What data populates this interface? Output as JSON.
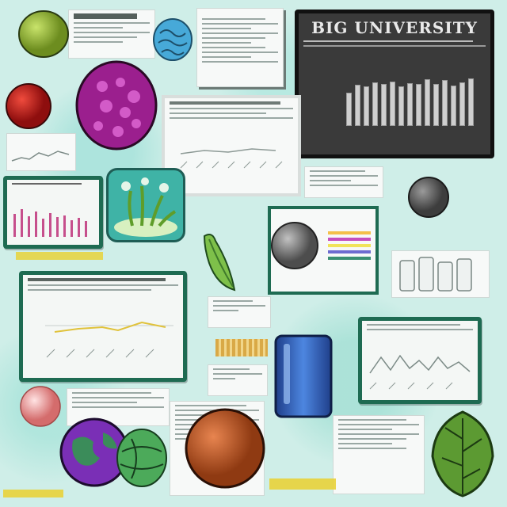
{
  "colors": {
    "background": "#cfeee8",
    "frame_green": "#1e6b52",
    "dark_board": "#3a3a3a",
    "accent_yellow": "#e8d23a",
    "accent_blue": "#2d5fb3"
  },
  "headings": {
    "board_title": "BIG UNIVERSITY"
  },
  "dark_chart_bars": [
    0.58,
    0.72,
    0.7,
    0.76,
    0.74,
    0.78,
    0.7,
    0.75,
    0.73,
    0.82,
    0.74,
    0.8,
    0.71,
    0.77,
    0.84
  ],
  "pink_chart_bars": [
    0.55,
    0.68,
    0.5,
    0.62,
    0.45,
    0.58,
    0.48,
    0.52,
    0.4,
    0.47,
    0.38
  ],
  "icons": [
    "green-sphere-icon",
    "red-sphere-icon",
    "blue-coral-icon",
    "purple-cell-icon",
    "aquatic-plant-icon",
    "green-leaf-icon",
    "grey-sphere-icon",
    "blue-beaker-icon",
    "pink-sphere-icon",
    "earth-globe-icon",
    "green-ball-icon",
    "orange-sphere-icon",
    "plant-bunch-icon",
    "color-swatch-icon"
  ]
}
